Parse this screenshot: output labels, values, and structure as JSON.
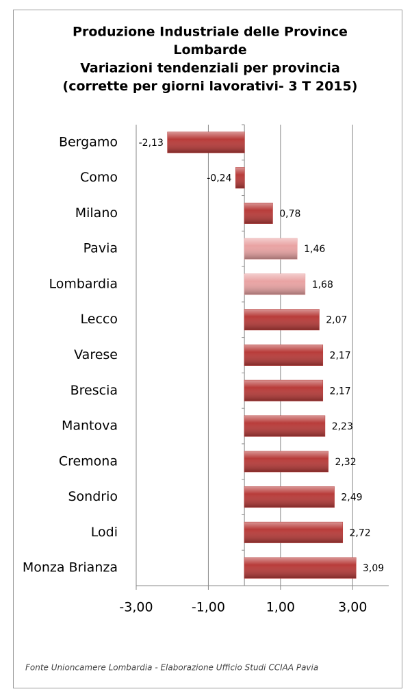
{
  "chart_data": {
    "type": "bar",
    "orientation": "horizontal",
    "title": [
      "Produzione Industriale delle Province",
      "Lombarde",
      "Variazioni tendenziali per provincia",
      "(corrette per giorni lavorativi- 3 T 2015)"
    ],
    "categories": [
      "Bergamo",
      "Como",
      "Milano",
      "Pavia",
      "Lombardia",
      "Lecco",
      "Varese",
      "Brescia",
      "Mantova",
      "Cremona",
      "Sondrio",
      "Lodi",
      "Monza Brianza"
    ],
    "values": [
      -2.13,
      -0.24,
      0.78,
      1.46,
      1.68,
      2.07,
      2.17,
      2.17,
      2.23,
      2.32,
      2.49,
      2.72,
      3.09
    ],
    "value_labels": [
      "-2,13",
      "-0,24",
      "0,78",
      "1,46",
      "1,68",
      "2,07",
      "2,17",
      "2,17",
      "2,23",
      "2,32",
      "2,49",
      "2,72",
      "3,09"
    ],
    "colors": [
      "#b83c3a",
      "#b83c3a",
      "#b83c3a",
      "#e9a3a3",
      "#e9a3a3",
      "#b83c3a",
      "#b83c3a",
      "#b83c3a",
      "#b83c3a",
      "#b83c3a",
      "#b83c3a",
      "#b83c3a",
      "#b83c3a"
    ],
    "xlim": [
      -3,
      4
    ],
    "xticks": [
      {
        "value": -3,
        "label": "-3,00"
      },
      {
        "value": -1,
        "label": "-1,00"
      },
      {
        "value": 1,
        "label": "1,00"
      },
      {
        "value": 3,
        "label": "3,00"
      }
    ],
    "grid": true,
    "source": "Fonte Unioncamere Lombardia - Elaborazione Ufficio Studi CCIAA Pavia"
  }
}
